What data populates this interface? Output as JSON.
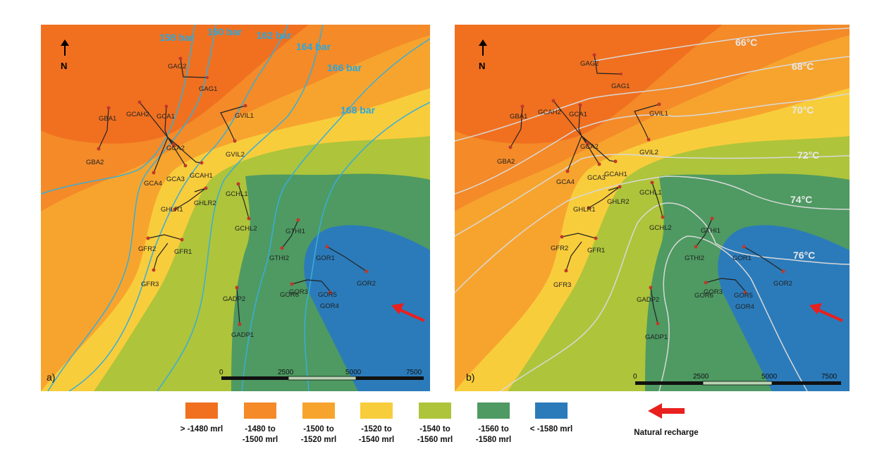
{
  "colors": {
    "z1": "#f07020",
    "z2": "#f48a28",
    "z3": "#f7a42e",
    "z4": "#f8cd3c",
    "z5": "#aec43a",
    "z6": "#4e9a62",
    "z7": "#2b7bba"
  },
  "panels": [
    {
      "label": "a)",
      "north": "N",
      "scale_ticks": [
        "0",
        "2500",
        "5000",
        "7500"
      ],
      "isolines": [
        "158 bar",
        "160 bar",
        "162 bar",
        "164 bar",
        "166 bar",
        "168 bar"
      ]
    },
    {
      "label": "b)",
      "north": "N",
      "scale_ticks": [
        "0",
        "2500",
        "5000",
        "7500"
      ],
      "isolines": [
        "66°C",
        "68°C",
        "70°C",
        "72°C",
        "74°C",
        "76°C"
      ]
    }
  ],
  "wells": [
    "GAG2",
    "GAG1",
    "GBA1",
    "GBA2",
    "GCAH2",
    "GCA1",
    "GCA2",
    "GCA3",
    "GCA4",
    "GCAH1",
    "GVIL1",
    "GVIL2",
    "GHLR1",
    "GHLR2",
    "GCHL1",
    "GCHL2",
    "GTHI1",
    "GTHI2",
    "GFR2",
    "GFR1",
    "GFR3",
    "GOR1",
    "GOR2",
    "GOR3",
    "GOR5",
    "GOR6",
    "GOR4",
    "GADP2",
    "GADP1"
  ],
  "legend": {
    "items": [
      {
        "label": "> -1480 mrl",
        "color": "#f07020"
      },
      {
        "label": "-1480 to\n-1500 mrl",
        "color": "#f48a28"
      },
      {
        "label": "-1500 to\n-1520 mrl",
        "color": "#f7a42e"
      },
      {
        "label": "-1520 to\n-1540 mrl",
        "color": "#f8cd3c"
      },
      {
        "label": "-1540 to\n-1560 mrl",
        "color": "#aec43a"
      },
      {
        "label": "-1560 to\n-1580 mrl",
        "color": "#4e9a62"
      },
      {
        "label": "< -1580 mrl",
        "color": "#2b7bba"
      }
    ],
    "recharge_label": "Natural recharge"
  }
}
